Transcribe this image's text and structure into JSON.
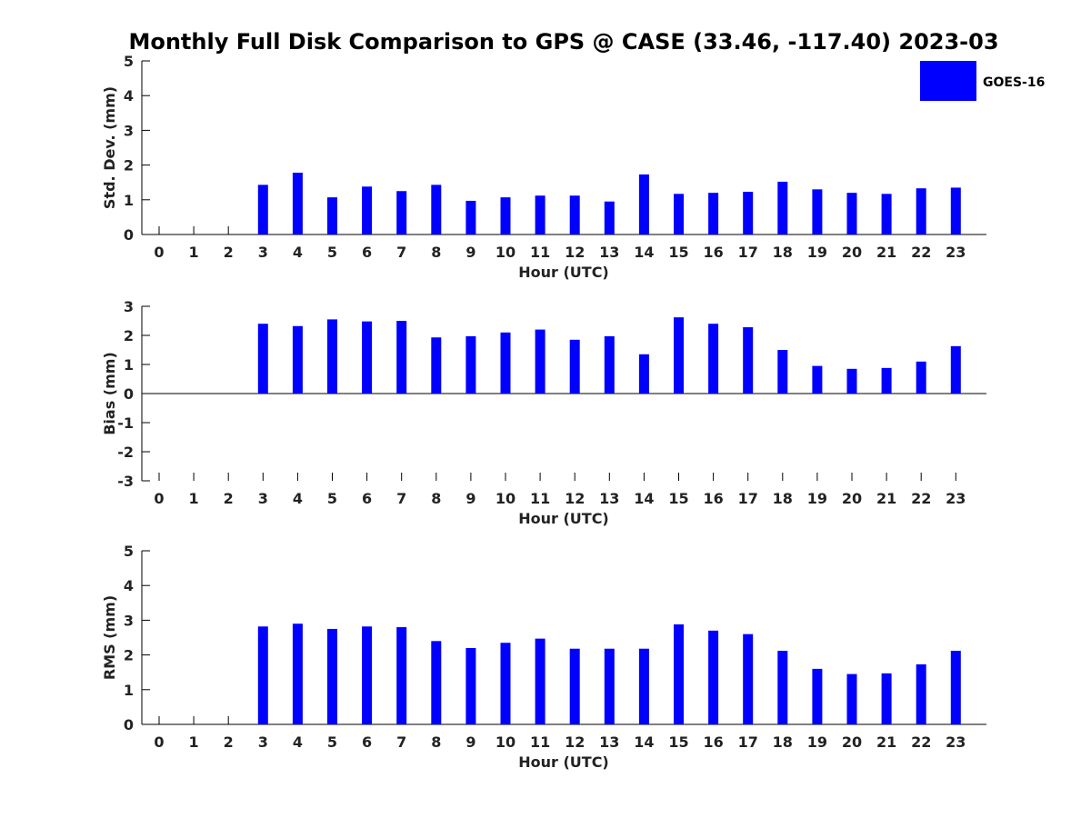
{
  "title": "Monthly Full Disk Comparison to GPS @ CASE (33.46, -117.40) 2023-03",
  "legend": {
    "label": "GOES-16",
    "color": "#0000ff"
  },
  "chart_data": [
    {
      "type": "bar",
      "id": "stddev",
      "xlabel": "Hour (UTC)",
      "ylabel": "Std. Dev. (mm)",
      "ylim": [
        0,
        5
      ],
      "yticks": [
        0,
        1,
        2,
        3,
        4,
        5
      ],
      "categories": [
        "0",
        "1",
        "2",
        "3",
        "4",
        "5",
        "6",
        "7",
        "8",
        "9",
        "10",
        "11",
        "12",
        "13",
        "14",
        "15",
        "16",
        "17",
        "18",
        "19",
        "20",
        "21",
        "22",
        "23"
      ],
      "series": [
        {
          "name": "GOES-16",
          "values": [
            null,
            null,
            null,
            1.43,
            1.78,
            1.07,
            1.38,
            1.25,
            1.43,
            0.97,
            1.07,
            1.12,
            1.12,
            0.95,
            1.73,
            1.17,
            1.2,
            1.23,
            1.52,
            1.3,
            1.2,
            1.17,
            1.33,
            1.35
          ]
        }
      ]
    },
    {
      "type": "bar",
      "id": "bias",
      "xlabel": "Hour (UTC)",
      "ylabel": "Bias (mm)",
      "ylim": [
        -3,
        3
      ],
      "yticks": [
        -3,
        -2,
        -1,
        0,
        1,
        2,
        3
      ],
      "categories": [
        "0",
        "1",
        "2",
        "3",
        "4",
        "5",
        "6",
        "7",
        "8",
        "9",
        "10",
        "11",
        "12",
        "13",
        "14",
        "15",
        "16",
        "17",
        "18",
        "19",
        "20",
        "21",
        "22",
        "23"
      ],
      "series": [
        {
          "name": "GOES-16",
          "values": [
            null,
            null,
            null,
            2.4,
            2.32,
            2.55,
            2.48,
            2.5,
            1.93,
            1.97,
            2.1,
            2.2,
            1.85,
            1.97,
            1.35,
            2.62,
            2.4,
            2.28,
            1.5,
            0.95,
            0.85,
            0.88,
            1.1,
            1.63
          ]
        }
      ]
    },
    {
      "type": "bar",
      "id": "rms",
      "xlabel": "Hour (UTC)",
      "ylabel": "RMS (mm)",
      "ylim": [
        0,
        5
      ],
      "yticks": [
        0,
        1,
        2,
        3,
        4,
        5
      ],
      "categories": [
        "0",
        "1",
        "2",
        "3",
        "4",
        "5",
        "6",
        "7",
        "8",
        "9",
        "10",
        "11",
        "12",
        "13",
        "14",
        "15",
        "16",
        "17",
        "18",
        "19",
        "20",
        "21",
        "22",
        "23"
      ],
      "series": [
        {
          "name": "GOES-16",
          "values": [
            null,
            null,
            null,
            2.82,
            2.9,
            2.75,
            2.82,
            2.8,
            2.4,
            2.2,
            2.35,
            2.47,
            2.18,
            2.18,
            2.18,
            2.88,
            2.7,
            2.6,
            2.12,
            1.6,
            1.45,
            1.47,
            1.73,
            2.12
          ]
        }
      ]
    }
  ]
}
